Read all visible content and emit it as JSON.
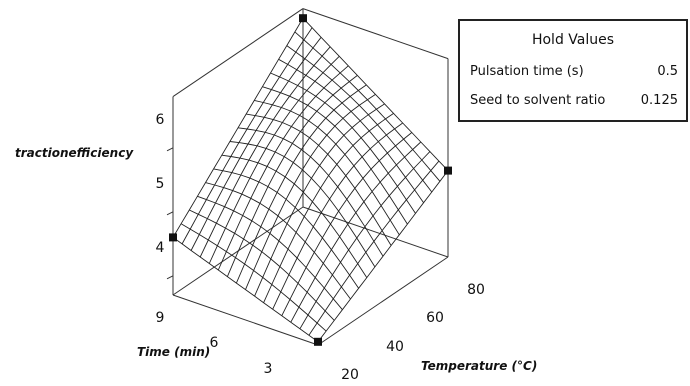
{
  "chart_data": {
    "type": "surface",
    "z_label": "tractionefficiency",
    "x_label": "Time (min)",
    "y_label": "Temperature (°C)",
    "z_ticks": [
      "4",
      "5",
      "6"
    ],
    "x_ticks": [
      "3",
      "6",
      "9"
    ],
    "y_ticks": [
      "20",
      "40",
      "60",
      "80"
    ],
    "x_range": [
      1.5,
      9.5
    ],
    "y_range": [
      20,
      80
    ],
    "z_range": [
      3.7,
      6.7
    ],
    "corner_values": {
      "time_min_temp_min": 3.75,
      "time_min_temp_max": 5.05,
      "time_max_temp_min": 4.6,
      "time_max_temp_max": 6.65
    },
    "grid_lines": 16
  },
  "hold_values": {
    "title": "Hold Values",
    "rows": [
      {
        "label": "Pulsation time (s)",
        "value": "0.5"
      },
      {
        "label": "Seed to solvent ratio",
        "value": "0.125"
      }
    ]
  }
}
